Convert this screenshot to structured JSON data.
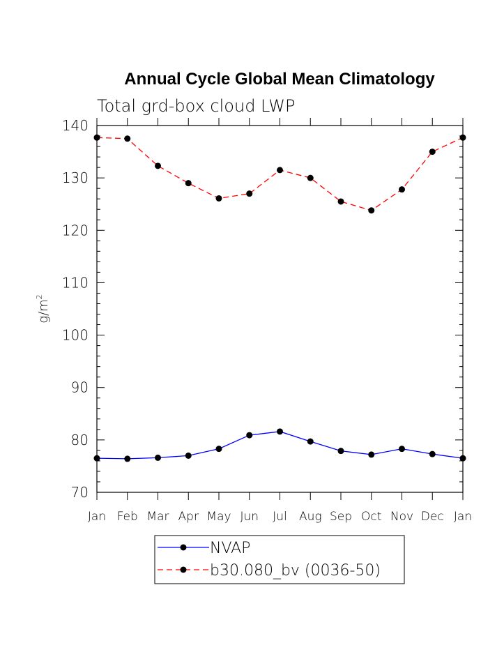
{
  "chart_data": {
    "type": "line",
    "title": "Annual Cycle Global Mean Climatology",
    "subtitle": "Total grd-box cloud LWP",
    "ylabel": "g/m",
    "ylabel_superscript": "2",
    "xlabel": "",
    "ylim": [
      70,
      140
    ],
    "yticks": [
      "70",
      "80",
      "90",
      "100",
      "110",
      "120",
      "130",
      "140"
    ],
    "categories": [
      "Jan",
      "Feb",
      "Mar",
      "Apr",
      "May",
      "Jun",
      "Jul",
      "Aug",
      "Sep",
      "Oct",
      "Nov",
      "Dec",
      "Jan"
    ],
    "series": [
      {
        "name": "NVAP",
        "color": "#0000ff",
        "dashed": false,
        "values": [
          76.5,
          76.4,
          76.6,
          77.0,
          78.3,
          80.9,
          81.6,
          79.7,
          77.9,
          77.2,
          78.3,
          77.3,
          76.5
        ]
      },
      {
        "name": "b30.080_bv (0036-50)",
        "color": "#ff0000",
        "dashed": true,
        "values": [
          137.7,
          137.5,
          132.3,
          129.0,
          126.1,
          127.0,
          131.5,
          130.0,
          125.5,
          123.8,
          127.8,
          135.0,
          137.7
        ]
      }
    ],
    "legend_position": "bottom-center",
    "grid": false
  }
}
